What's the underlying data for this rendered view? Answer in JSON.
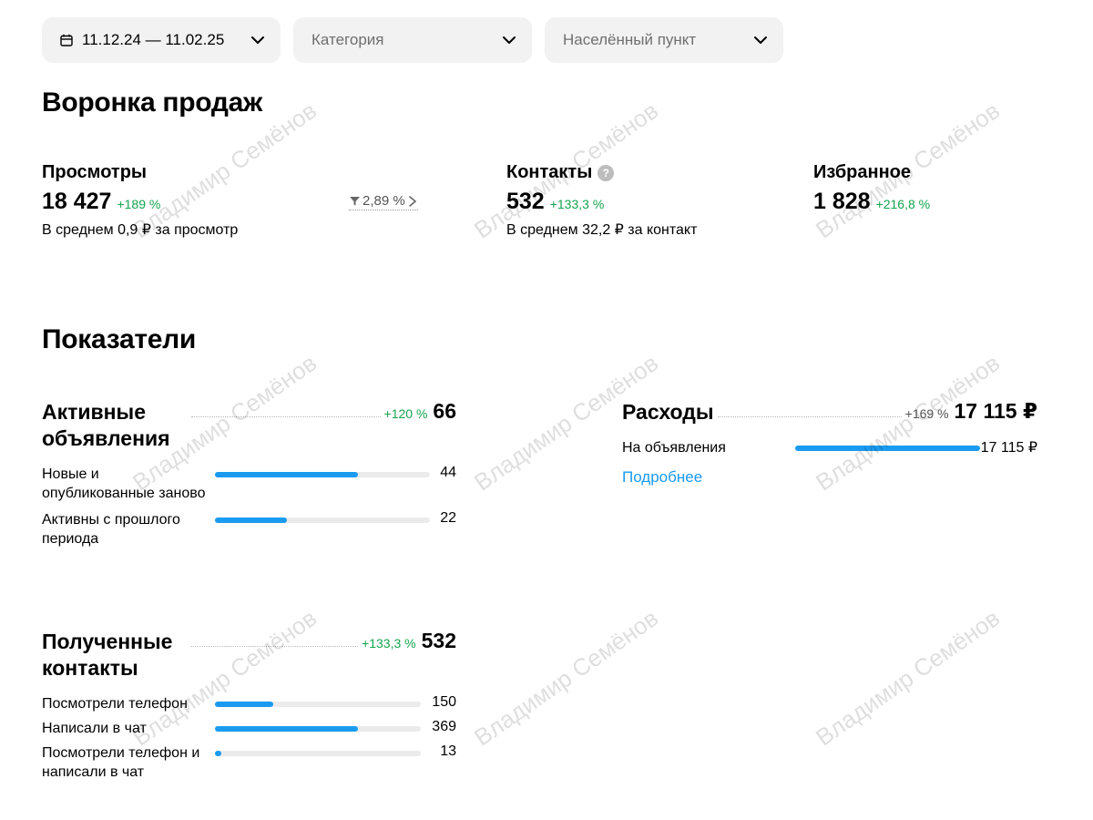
{
  "filters": {
    "period": "11.12.24 — 11.02.25",
    "category_placeholder": "Категория",
    "location_placeholder": "Населённый пункт"
  },
  "funnel": {
    "title": "Воронка продаж",
    "views": {
      "label": "Просмотры",
      "value": "18 427",
      "delta": "+189 %",
      "sub": "В среднем 0,9 ₽ за просмотр"
    },
    "conversion": "2,89 %",
    "contacts": {
      "label": "Контакты",
      "value": "532",
      "delta": "+133,3 %",
      "sub": "В среднем 32,2 ₽ за контакт",
      "help": "?"
    },
    "favorites": {
      "label": "Избранное",
      "value": "1 828",
      "delta": "+216,8 %"
    }
  },
  "indicators": {
    "title": "Показатели",
    "active": {
      "title": "Активные объявления",
      "delta": "+120 %",
      "value": "66",
      "rows": [
        {
          "label": "Новые и опубликованные заново",
          "value": "44",
          "fraction": 0.667
        },
        {
          "label": "Активны с прошлого периода",
          "value": "22",
          "fraction": 0.333
        }
      ]
    },
    "expenses": {
      "title": "Расходы",
      "delta": "+169 %",
      "value": "17 115 ₽",
      "rows": [
        {
          "label": "На объявления",
          "value": "17 115 ₽",
          "fraction": 1.0
        }
      ],
      "link": "Подробнее"
    },
    "contacts": {
      "title": "Полученные контакты",
      "delta": "+133,3 %",
      "value": "532",
      "rows": [
        {
          "label": "Посмотрели телефон",
          "value": "150",
          "fraction": 0.282
        },
        {
          "label": "Написали в чат",
          "value": "369",
          "fraction": 0.694
        },
        {
          "label": "Посмотрели телефон и написали в чат",
          "value": "13",
          "fraction": 0.024
        }
      ]
    }
  },
  "watermark": "Владимир Семёнов",
  "colors": {
    "accent": "#1a9bf0",
    "positive": "#14a44d",
    "filter_bg": "#f2f2f2"
  },
  "icons": [
    "calendar-icon",
    "chevron-down-icon",
    "help-icon",
    "funnel-icon",
    "chevron-right-icon"
  ]
}
